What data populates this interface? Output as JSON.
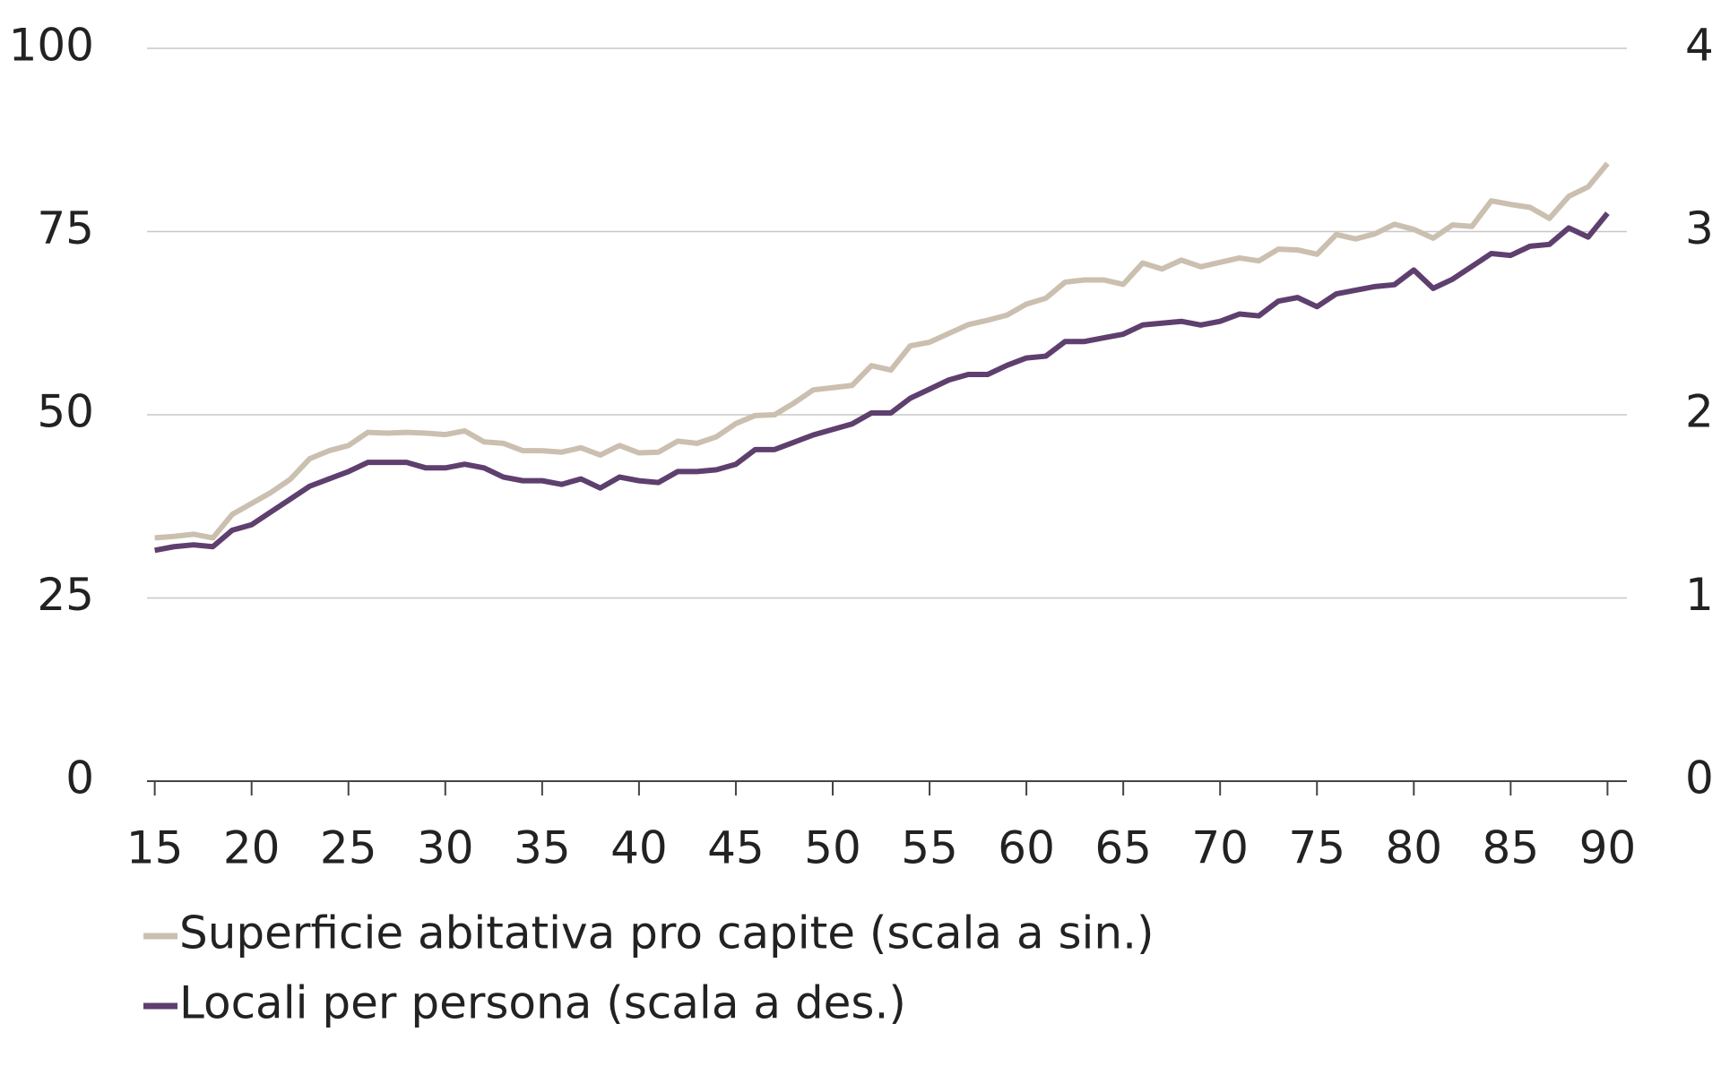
{
  "chart_data": {
    "type": "line",
    "x": [
      15,
      16,
      17,
      18,
      19,
      20,
      21,
      22,
      23,
      24,
      25,
      26,
      27,
      28,
      29,
      30,
      31,
      32,
      33,
      34,
      35,
      36,
      37,
      38,
      39,
      40,
      41,
      42,
      43,
      44,
      45,
      46,
      47,
      48,
      49,
      50,
      51,
      52,
      53,
      54,
      55,
      56,
      57,
      58,
      59,
      60,
      61,
      62,
      63,
      64,
      65,
      66,
      67,
      68,
      69,
      70,
      71,
      72,
      73,
      74,
      75,
      76,
      77,
      78,
      79,
      80,
      81,
      82,
      83,
      84,
      85,
      86,
      87,
      88,
      89,
      90
    ],
    "series": [
      {
        "name": "Superficie abitativa pro capite (scala a sin.)",
        "color": "#cbbfb0",
        "values": [
          33.2,
          33.4,
          33.7,
          33.2,
          36.4,
          37.9,
          39.4,
          41.2,
          44.0,
          45.1,
          45.8,
          47.6,
          47.5,
          47.6,
          47.5,
          47.3,
          47.8,
          46.3,
          46.1,
          45.1,
          45.1,
          44.9,
          45.5,
          44.5,
          45.8,
          44.8,
          44.9,
          46.4,
          46.1,
          47.0,
          48.8,
          49.9,
          50.0,
          51.6,
          53.4,
          53.7,
          54.0,
          56.7,
          56.1,
          59.4,
          59.9,
          61.1,
          62.3,
          62.9,
          63.6,
          65.1,
          65.9,
          68.1,
          68.4,
          68.4,
          67.8,
          70.7,
          69.9,
          71.1,
          70.2,
          70.8,
          71.4,
          71.0,
          72.6,
          72.5,
          71.9,
          74.6,
          74.0,
          74.7,
          76.0,
          75.3,
          74.1,
          75.9,
          75.7,
          79.2,
          78.7,
          78.3,
          76.8,
          79.8,
          81.1,
          84.3
        ]
      },
      {
        "name": "Locali per persona (scala a des.)",
        "color": "#5e3f6e",
        "axis": "y2",
        "values": [
          1.26,
          1.28,
          1.29,
          1.28,
          1.37,
          1.4,
          1.47,
          1.54,
          1.61,
          1.65,
          1.69,
          1.74,
          1.74,
          1.74,
          1.71,
          1.71,
          1.73,
          1.71,
          1.66,
          1.64,
          1.64,
          1.62,
          1.65,
          1.6,
          1.66,
          1.64,
          1.63,
          1.69,
          1.69,
          1.7,
          1.73,
          1.81,
          1.81,
          1.85,
          1.89,
          1.92,
          1.95,
          2.01,
          2.01,
          2.09,
          2.14,
          2.19,
          2.22,
          2.22,
          2.27,
          2.31,
          2.32,
          2.4,
          2.4,
          2.42,
          2.44,
          2.49,
          2.5,
          2.51,
          2.49,
          2.51,
          2.55,
          2.54,
          2.62,
          2.64,
          2.59,
          2.66,
          2.68,
          2.7,
          2.71,
          2.79,
          2.69,
          2.74,
          2.81,
          2.88,
          2.87,
          2.92,
          2.93,
          3.02,
          2.97,
          3.1
        ]
      }
    ],
    "xlim": [
      14.6,
      91
    ],
    "xticks": [
      15,
      20,
      25,
      30,
      35,
      40,
      45,
      50,
      55,
      60,
      65,
      70,
      75,
      80,
      85,
      90
    ],
    "ylim": [
      0,
      100
    ],
    "yticks": [
      0,
      25,
      50,
      75,
      100
    ],
    "y2lim": [
      0,
      4
    ],
    "y2ticks": [
      0,
      1,
      2,
      3,
      4
    ],
    "grid": true
  }
}
